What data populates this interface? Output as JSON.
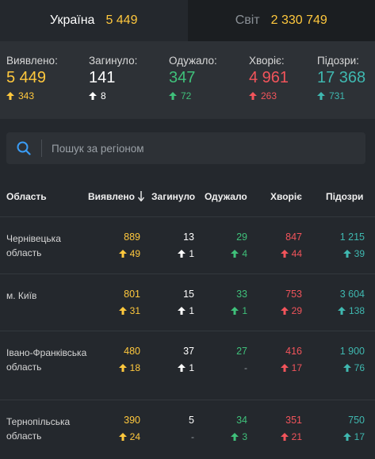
{
  "tabs": {
    "ukraine": {
      "label": "Україна",
      "value": "5 449"
    },
    "world": {
      "label": "Світ",
      "value": "2 330 749"
    }
  },
  "summary": {
    "detected": {
      "label": "Виявлено:",
      "value": "5 449",
      "delta": "343"
    },
    "died": {
      "label": "Загинуло:",
      "value": "141",
      "delta": "8"
    },
    "recovered": {
      "label": "Одужало:",
      "value": "347",
      "delta": "72"
    },
    "sick": {
      "label": "Хворіє:",
      "value": "4 961",
      "delta": "263"
    },
    "suspected": {
      "label": "Підозри:",
      "value": "17 368",
      "delta": "731"
    }
  },
  "search": {
    "placeholder": "Пошук за регіоном"
  },
  "table": {
    "headers": {
      "region": "Область",
      "detected": "Виявлено",
      "died": "Загинуло",
      "recovered": "Одужало",
      "sick": "Хворіє",
      "suspected": "Підозри"
    },
    "rows": [
      {
        "region": "Чернівецька область",
        "detected": "889",
        "detected_d": "49",
        "died": "13",
        "died_d": "1",
        "recovered": "29",
        "recovered_d": "4",
        "sick": "847",
        "sick_d": "44",
        "suspected": "1 215",
        "suspected_d": "39"
      },
      {
        "region": "м. Київ",
        "detected": "801",
        "detected_d": "31",
        "died": "15",
        "died_d": "1",
        "recovered": "33",
        "recovered_d": "1",
        "sick": "753",
        "sick_d": "29",
        "suspected": "3 604",
        "suspected_d": "138"
      },
      {
        "region": "Івано-Франківська область",
        "detected": "480",
        "detected_d": "18",
        "died": "37",
        "died_d": "1",
        "recovered": "27",
        "recovered_d": "-",
        "sick": "416",
        "sick_d": "17",
        "suspected": "1 900",
        "suspected_d": "76"
      },
      {
        "region": "Тернопільська область",
        "detected": "390",
        "detected_d": "24",
        "died": "5",
        "died_d": "-",
        "recovered": "34",
        "recovered_d": "3",
        "sick": "351",
        "sick_d": "21",
        "suspected": "750",
        "suspected_d": "17"
      }
    ]
  },
  "colors": {
    "yellow": "#ffc83d",
    "white": "#ffffff",
    "green": "#3fc07a",
    "red": "#f2545b",
    "teal": "#3fb8b0",
    "search_icon": "#3a9cf5"
  }
}
